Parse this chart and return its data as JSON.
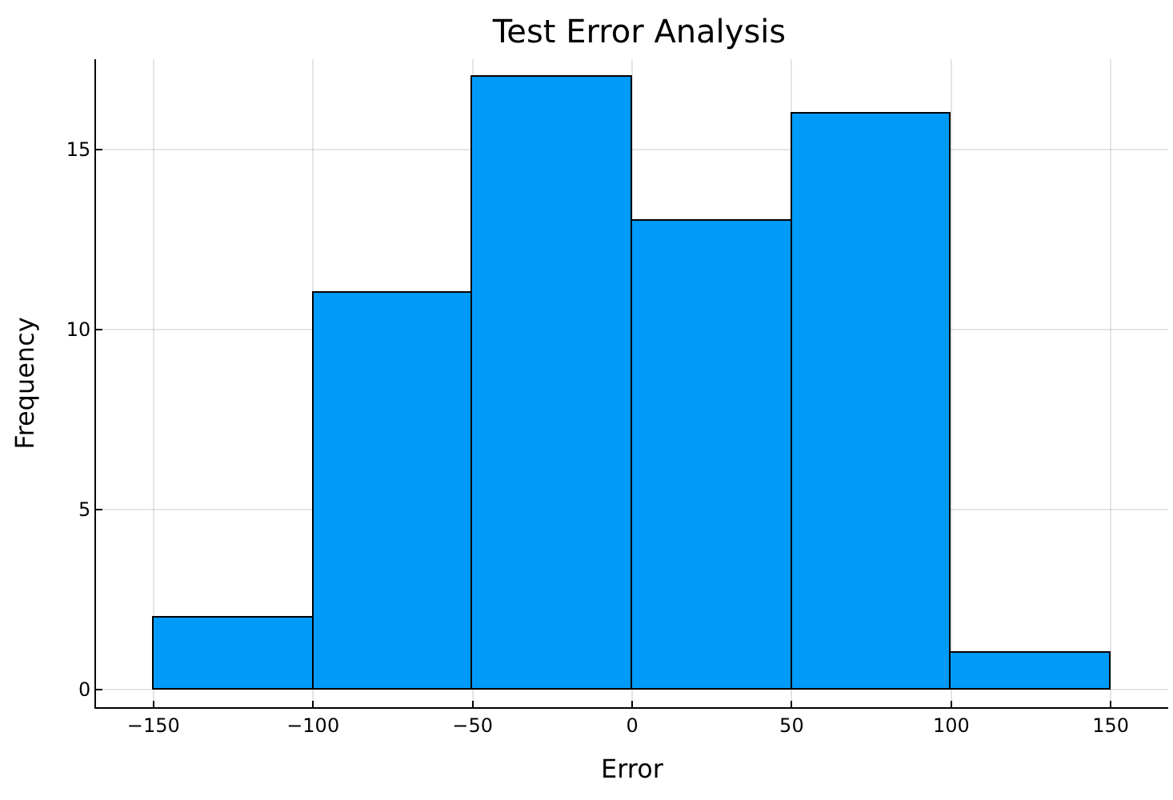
{
  "chart_data": {
    "type": "histogram",
    "title": "Test Error Analysis",
    "xlabel": "Error",
    "ylabel": "Frequency",
    "bins": [
      -150,
      -100,
      -50,
      0,
      50,
      100,
      150
    ],
    "values": [
      2,
      11,
      17,
      13,
      16,
      1
    ],
    "color": "#009af9",
    "xlim": [
      -168,
      168
    ],
    "xticks": [
      {
        "value": -150,
        "label": "−150"
      },
      {
        "value": -100,
        "label": "−100"
      },
      {
        "value": -50,
        "label": "−50"
      },
      0,
      50,
      100,
      150
    ],
    "ylim": [
      -0.5,
      17.5
    ],
    "yticks": [
      0,
      5,
      10,
      15
    ],
    "grid": true
  }
}
